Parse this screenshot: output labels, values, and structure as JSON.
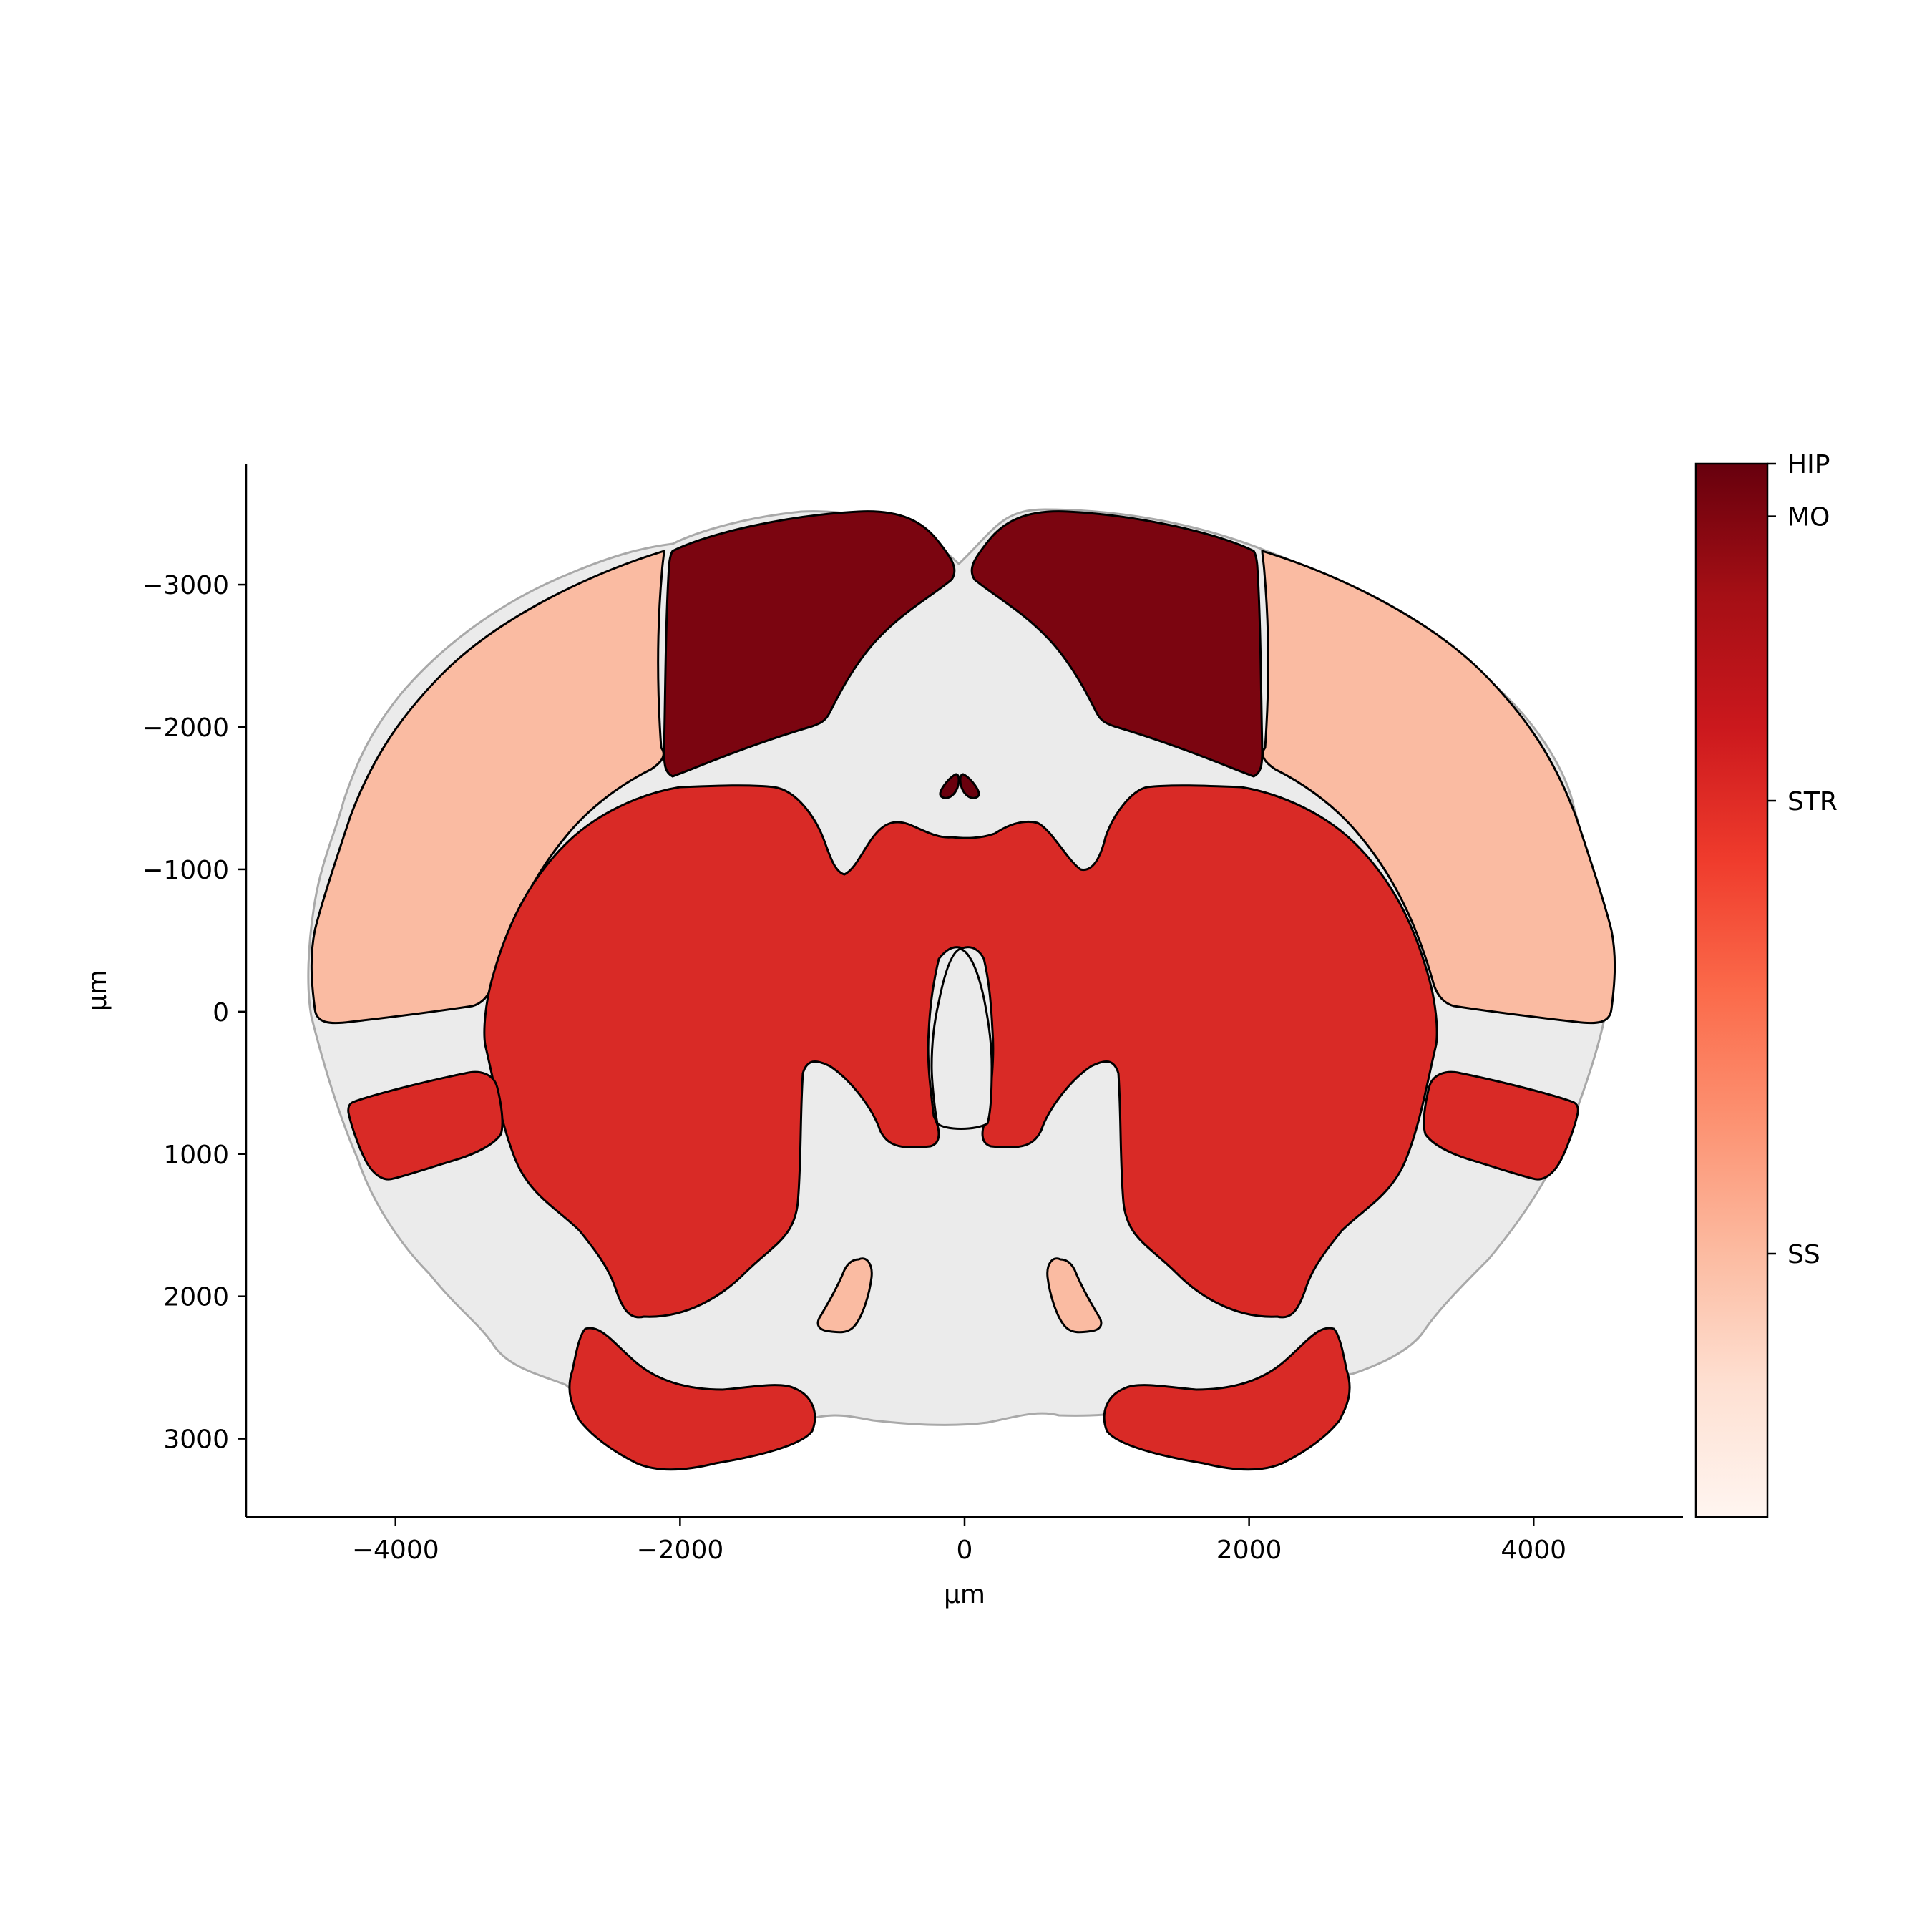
{
  "chart_data": {
    "type": "brain-region-map",
    "xlabel": "µm",
    "ylabel": "µm",
    "xlim": [
      -5050,
      5050
    ],
    "ylim": [
      3550,
      -3850
    ],
    "x_ticks": [
      {
        "value": -4000,
        "label": "−4000"
      },
      {
        "value": -2000,
        "label": "−2000"
      },
      {
        "value": 0,
        "label": "0"
      },
      {
        "value": 2000,
        "label": "2000"
      },
      {
        "value": 4000,
        "label": "4000"
      }
    ],
    "y_ticks": [
      {
        "value": -3000,
        "label": "−3000"
      },
      {
        "value": -2000,
        "label": "−2000"
      },
      {
        "value": -1000,
        "label": "−1000"
      },
      {
        "value": 0,
        "label": "0"
      },
      {
        "value": 1000,
        "label": "1000"
      },
      {
        "value": 2000,
        "label": "2000"
      },
      {
        "value": 3000,
        "label": "3000"
      }
    ],
    "colorbar": {
      "colormap": "Reds",
      "range": [
        0,
        1
      ],
      "ticks": [
        {
          "label": "HIP",
          "value": 1.0
        },
        {
          "label": "MO",
          "value": 0.95
        },
        {
          "label": "STR",
          "value": 0.68
        },
        {
          "label": "SS",
          "value": 0.25
        }
      ],
      "stops": [
        "#fff5f0",
        "#fee0d2",
        "#fcbba1",
        "#fc9272",
        "#fb6a4a",
        "#ef3b2c",
        "#cb181d",
        "#a50f15",
        "#67000d"
      ]
    },
    "region_colors": {
      "SS": "#fabba2",
      "MO": "#7b0510",
      "STR": "#d92a26",
      "HIP": "#6a000d",
      "background": "#ebebeb"
    }
  }
}
